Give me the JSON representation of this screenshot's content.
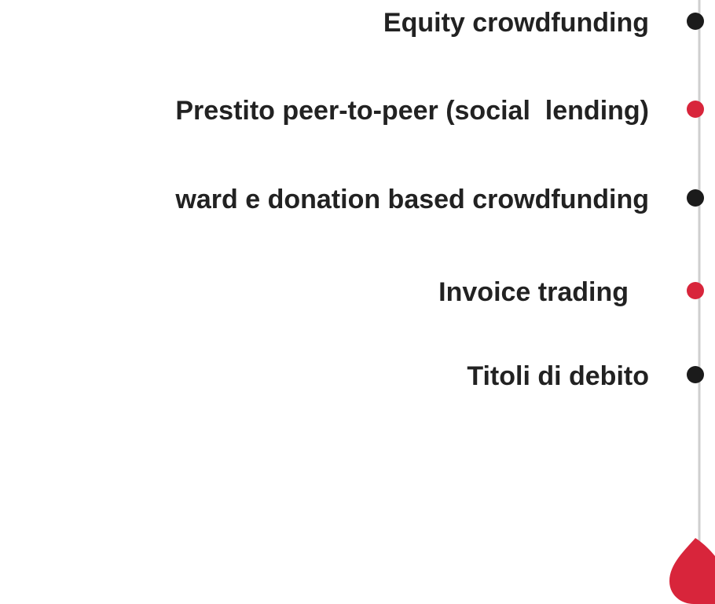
{
  "timeline": {
    "items": [
      {
        "label": "Equity crowdfunding",
        "color": "#1b1b1b"
      },
      {
        "label": "Prestito peer-to-peer (social  lending)",
        "color": "#d8253b"
      },
      {
        "label": "ward e donation based crowdfunding",
        "color": "#1b1b1b"
      },
      {
        "label": "Invoice trading",
        "color": "#d8253b"
      },
      {
        "label": "Titoli di debito",
        "color": "#1b1b1b"
      }
    ]
  }
}
